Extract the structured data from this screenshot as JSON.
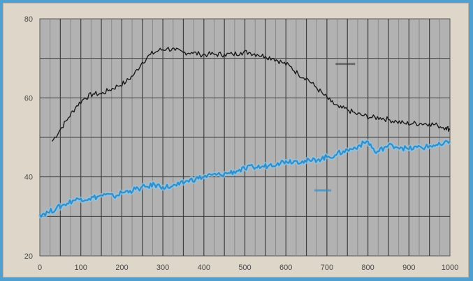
{
  "chart_data": {
    "type": "line",
    "xlim": [
      0,
      1000
    ],
    "ylim": [
      20,
      80
    ],
    "x_ticks": [
      0,
      100,
      200,
      300,
      400,
      500,
      600,
      700,
      800,
      900,
      1000
    ],
    "y_ticks": [
      20,
      40,
      60,
      80
    ],
    "grid": true,
    "title": "",
    "xlabel": "",
    "ylabel": "",
    "series": [
      {
        "color": "#1a1a1a",
        "label_text": "",
        "x": [
          30,
          50,
          70,
          90,
          110,
          130,
          150,
          170,
          190,
          210,
          230,
          250,
          270,
          290,
          310,
          330,
          350,
          370,
          390,
          410,
          430,
          450,
          470,
          490,
          510,
          530,
          550,
          570,
          590,
          610,
          630,
          650,
          670,
          690,
          710,
          730,
          750,
          770,
          790,
          810,
          830,
          850,
          870,
          890,
          910,
          930,
          950,
          970,
          990,
          1000
        ],
        "y": [
          49,
          52,
          55,
          58,
          60,
          61,
          61,
          62,
          63,
          64,
          66,
          69,
          71,
          72,
          72.5,
          72,
          71.5,
          71.5,
          71,
          71,
          71,
          71,
          71,
          71.5,
          71.5,
          71,
          70.5,
          70,
          69,
          68,
          66,
          65,
          63,
          61,
          59,
          57.5,
          57,
          56,
          55.5,
          55,
          55,
          54.5,
          54,
          53.5,
          53.5,
          53.5,
          53.5,
          53,
          52.5,
          52
        ]
      },
      {
        "color": "#2f8fcd",
        "label_text": "",
        "x": [
          0,
          20,
          40,
          60,
          80,
          100,
          120,
          140,
          160,
          180,
          200,
          220,
          240,
          260,
          280,
          300,
          320,
          340,
          360,
          380,
          400,
          420,
          440,
          460,
          480,
          500,
          520,
          540,
          560,
          580,
          600,
          620,
          640,
          660,
          680,
          700,
          720,
          740,
          760,
          780,
          800,
          820,
          840,
          860,
          880,
          900,
          920,
          940,
          960,
          980,
          1000
        ],
        "y": [
          30.5,
          31,
          32,
          33,
          34,
          34.5,
          34.5,
          35,
          35.5,
          35,
          36,
          36.5,
          37,
          37.5,
          38,
          37.5,
          37.5,
          38,
          39,
          39.5,
          40,
          40.5,
          40.5,
          41,
          41.5,
          42,
          42.5,
          42.5,
          43,
          43.5,
          44,
          44,
          44,
          44,
          44.5,
          45,
          45.5,
          46.5,
          47,
          48,
          49,
          46,
          47.5,
          48,
          47.5,
          47,
          47.5,
          47.5,
          48,
          48,
          49
        ]
      }
    ]
  },
  "colors": {
    "frame_bg": "#ddd6c9",
    "plot_bg": "#b2b2b2",
    "grid_major": "#3e3e3e",
    "grid_minor": "#8a8a8a",
    "outer_border": "#4f9fd1"
  }
}
